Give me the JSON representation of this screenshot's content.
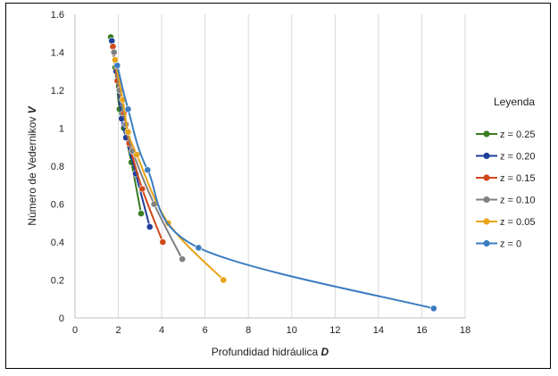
{
  "chart_data": {
    "type": "line",
    "xlabel": "Profundidad hidráulica",
    "xlabel_symbol": "D",
    "ylabel": "Número de Vedernikov",
    "ylabel_symbol": "V",
    "xlim": [
      0,
      18
    ],
    "ylim": [
      0,
      1.6
    ],
    "xticks": [
      "0",
      "2",
      "4",
      "6",
      "8",
      "10",
      "12",
      "14",
      "16",
      "18"
    ],
    "yticks": [
      "0",
      "0.2",
      "0.4",
      "0.6",
      "0.8",
      "1",
      "1.2",
      "1.4",
      "1.6"
    ],
    "grid": "vertical",
    "legend": {
      "title": "Leyenda",
      "placement": "right"
    },
    "series": [
      {
        "name": "z = 0.25",
        "color": "#3a7d22",
        "x": [
          1.65,
          1.85,
          2.05,
          2.25,
          2.6,
          3.05
        ],
        "y": [
          1.48,
          1.32,
          1.1,
          1.0,
          0.82,
          0.55
        ]
      },
      {
        "name": "z = 0.20",
        "color": "#1f3f99",
        "x": [
          1.7,
          1.9,
          2.15,
          2.35,
          2.8,
          3.45
        ],
        "y": [
          1.46,
          1.3,
          1.05,
          0.95,
          0.76,
          0.48
        ]
      },
      {
        "name": "z = 0.15",
        "color": "#d0491b",
        "x": [
          1.75,
          1.95,
          2.25,
          2.5,
          3.1,
          4.05
        ],
        "y": [
          1.43,
          1.25,
          1.08,
          0.92,
          0.68,
          0.4
        ]
      },
      {
        "name": "z = 0.10",
        "color": "#808080",
        "x": [
          1.8,
          2.05,
          2.35,
          2.65,
          3.65,
          4.95
        ],
        "y": [
          1.4,
          1.2,
          1.02,
          0.88,
          0.6,
          0.31
        ]
      },
      {
        "name": "z = 0.05",
        "color": "#e8a317",
        "x": [
          1.85,
          2.2,
          2.45,
          2.85,
          4.3,
          6.85
        ],
        "y": [
          1.36,
          1.15,
          0.98,
          0.86,
          0.5,
          0.2
        ]
      },
      {
        "name": "z = 0",
        "color": "#3b7cc0",
        "x": [
          1.95,
          2.45,
          3.35,
          5.7,
          16.55
        ],
        "y": [
          1.33,
          1.1,
          0.78,
          0.37,
          0.05
        ]
      }
    ]
  }
}
